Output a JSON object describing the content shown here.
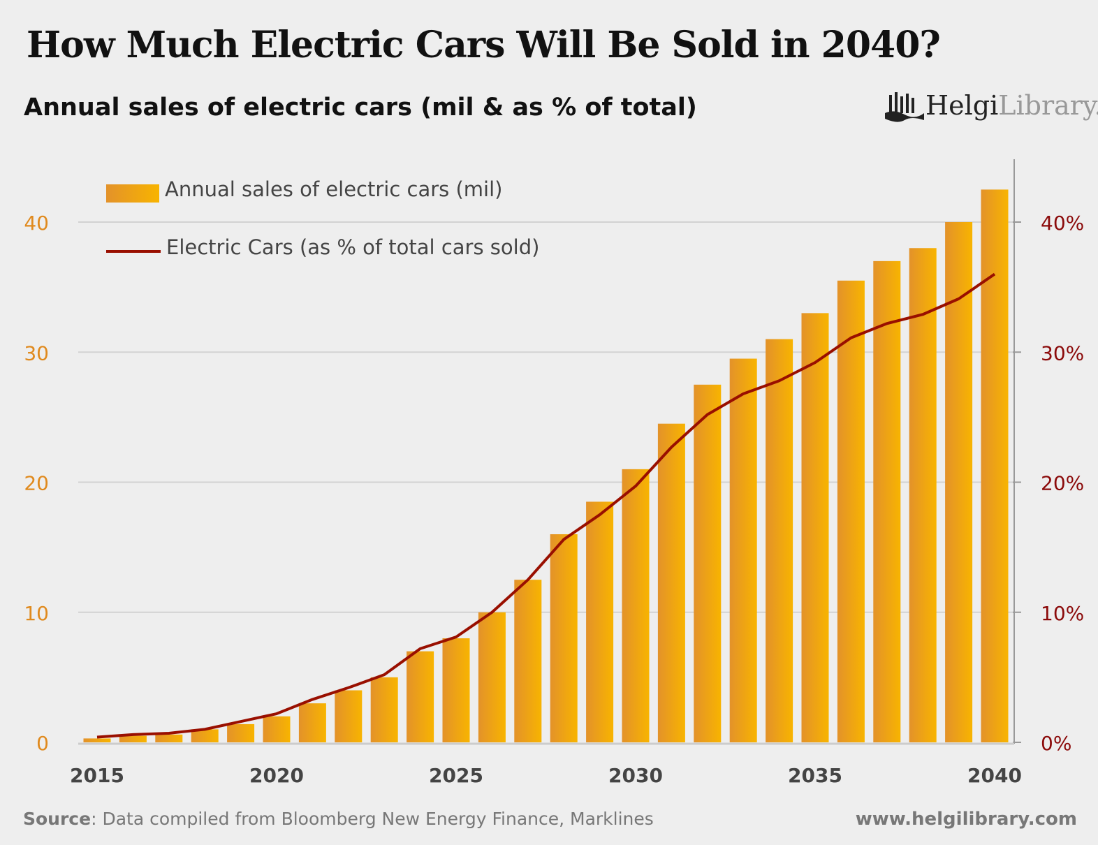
{
  "title": "How Much Electric Cars Will Be Sold in 2040?",
  "subtitle": "Annual sales of electric cars (mil & as % of total)",
  "logo": {
    "part1": "Helgi",
    "part2": "Library."
  },
  "source_label": "Source",
  "source_text": ": Data compiled from Bloomberg New Energy Finance, Marklines",
  "website": "www.helgilibrary.com",
  "chart_data": {
    "type": "bar",
    "title": "Annual sales of electric cars (mil & as % of total)",
    "x": [
      2015,
      2016,
      2017,
      2018,
      2019,
      2020,
      2021,
      2022,
      2023,
      2024,
      2025,
      2026,
      2027,
      2028,
      2029,
      2030,
      2031,
      2032,
      2033,
      2034,
      2035,
      2036,
      2037,
      2038,
      2039,
      2040
    ],
    "x_ticks": [
      "2015",
      "2020",
      "2025",
      "2030",
      "2035",
      "2040"
    ],
    "y_left": {
      "ticks": [
        "0",
        "10",
        "20",
        "30",
        "40"
      ],
      "range": [
        0,
        45
      ],
      "color": "#e08a1e"
    },
    "y_right": {
      "ticks": [
        "0%",
        "10%",
        "20%",
        "30%",
        "40%"
      ],
      "range": [
        0,
        45
      ],
      "color": "#8b0a0a"
    },
    "grid": true,
    "legend_placement": "top-left",
    "series": [
      {
        "name": "Annual sales of electric cars (mil)",
        "type": "bar",
        "axis": "left",
        "color": "#f5a800",
        "values": [
          0.3,
          0.5,
          0.6,
          1.0,
          1.4,
          2.0,
          3.0,
          4.0,
          5.0,
          7.0,
          8.0,
          10.0,
          12.5,
          16.0,
          18.5,
          21.0,
          24.5,
          27.5,
          29.5,
          31.0,
          33.0,
          35.5,
          37.0,
          38.0,
          40.0,
          42.5
        ]
      },
      {
        "name": "Electric Cars (as % of total cars sold)",
        "type": "line",
        "axis": "right",
        "color": "#990f00",
        "values": [
          0.4,
          0.6,
          0.7,
          1.0,
          1.6,
          2.2,
          3.3,
          4.2,
          5.2,
          7.2,
          8.1,
          10.0,
          12.5,
          15.6,
          17.5,
          19.7,
          22.7,
          25.2,
          26.8,
          27.8,
          29.2,
          31.1,
          32.2,
          32.9,
          34.1,
          36.0
        ]
      }
    ]
  }
}
